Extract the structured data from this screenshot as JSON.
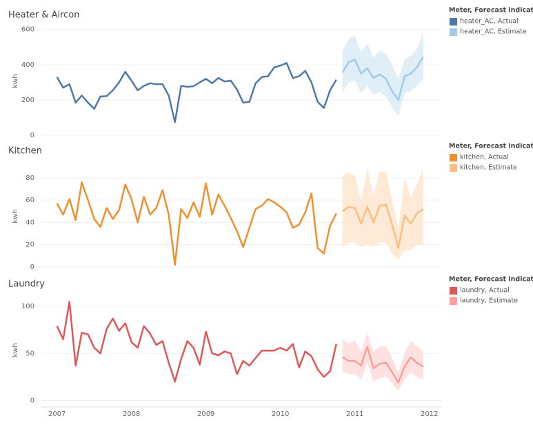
{
  "chart_data": [
    {
      "type": "line",
      "title": "Heater & Aircon",
      "y_label": "kwh",
      "legend_title": "Meter, Forecast indicator",
      "x": [
        2007,
        2007.083,
        2007.167,
        2007.25,
        2007.333,
        2007.417,
        2007.5,
        2007.583,
        2007.667,
        2007.75,
        2007.833,
        2007.917,
        2008,
        2008.083,
        2008.167,
        2008.25,
        2008.333,
        2008.417,
        2008.5,
        2008.583,
        2008.667,
        2008.75,
        2008.833,
        2008.917,
        2009,
        2009.083,
        2009.167,
        2009.25,
        2009.333,
        2009.417,
        2009.5,
        2009.583,
        2009.667,
        2009.75,
        2009.833,
        2009.917,
        2010,
        2010.083,
        2010.167,
        2010.25,
        2010.333,
        2010.417,
        2010.5,
        2010.583,
        2010.667,
        2010.75,
        2010.833,
        2010.917,
        2011,
        2011.083,
        2011.167,
        2011.25,
        2011.333,
        2011.417,
        2011.5,
        2011.583,
        2011.667,
        2011.75,
        2011.833,
        2011.917
      ],
      "xlim": [
        2006.79,
        2012.16
      ],
      "ylim": [
        -15,
        630
      ],
      "yticks": [
        0,
        200,
        400,
        600
      ],
      "grid": true,
      "series": [
        {
          "name": "heater_AC, Actual",
          "color": "#4e79a7",
          "values": [
            330,
            270,
            290,
            185,
            225,
            185,
            150,
            220,
            222,
            255,
            300,
            360,
            310,
            255,
            280,
            295,
            290,
            290,
            225,
            75,
            280,
            275,
            278,
            300,
            320,
            295,
            325,
            305,
            310,
            260,
            185,
            190,
            295,
            330,
            335,
            385,
            395,
            410,
            325,
            335,
            365,
            300,
            190,
            155,
            255,
            315,
            null,
            null,
            null,
            null,
            null,
            null,
            null,
            null,
            null,
            null,
            null,
            null,
            null,
            null
          ]
        },
        {
          "name": "heater_AC, Estimate",
          "color": "#a0cbe8",
          "band_color": "#d6e8f6",
          "values": [
            null,
            null,
            null,
            null,
            null,
            null,
            null,
            null,
            null,
            null,
            null,
            null,
            null,
            null,
            null,
            null,
            null,
            null,
            null,
            null,
            null,
            null,
            null,
            null,
            null,
            null,
            null,
            null,
            null,
            null,
            null,
            null,
            null,
            null,
            null,
            null,
            null,
            null,
            null,
            null,
            null,
            null,
            null,
            null,
            null,
            null,
            355,
            415,
            430,
            350,
            380,
            325,
            345,
            320,
            250,
            200,
            335,
            350,
            385,
            445
          ],
          "upper": [
            null,
            null,
            null,
            null,
            null,
            null,
            null,
            null,
            null,
            null,
            null,
            null,
            null,
            null,
            null,
            null,
            null,
            null,
            null,
            null,
            null,
            null,
            null,
            null,
            null,
            null,
            null,
            null,
            null,
            null,
            null,
            null,
            null,
            null,
            null,
            null,
            null,
            null,
            null,
            null,
            null,
            null,
            null,
            null,
            null,
            null,
            480,
            545,
            565,
            470,
            520,
            440,
            480,
            460,
            400,
            320,
            430,
            450,
            490,
            580
          ],
          "lower": [
            null,
            null,
            null,
            null,
            null,
            null,
            null,
            null,
            null,
            null,
            null,
            null,
            null,
            null,
            null,
            null,
            null,
            null,
            null,
            null,
            null,
            null,
            null,
            null,
            null,
            null,
            null,
            null,
            null,
            null,
            null,
            null,
            null,
            null,
            null,
            null,
            null,
            null,
            null,
            null,
            null,
            null,
            null,
            null,
            null,
            null,
            240,
            300,
            310,
            240,
            280,
            230,
            245,
            220,
            160,
            110,
            240,
            250,
            280,
            320
          ]
        }
      ]
    },
    {
      "type": "line",
      "title": "Kitchen",
      "y_label": "kwh",
      "legend_title": "Meter, Forecast indicator",
      "x": [
        2007,
        2007.083,
        2007.167,
        2007.25,
        2007.333,
        2007.417,
        2007.5,
        2007.583,
        2007.667,
        2007.75,
        2007.833,
        2007.917,
        2008,
        2008.083,
        2008.167,
        2008.25,
        2008.333,
        2008.417,
        2008.5,
        2008.583,
        2008.667,
        2008.75,
        2008.833,
        2008.917,
        2009,
        2009.083,
        2009.167,
        2009.25,
        2009.333,
        2009.417,
        2009.5,
        2009.583,
        2009.667,
        2009.75,
        2009.833,
        2009.917,
        2010,
        2010.083,
        2010.167,
        2010.25,
        2010.333,
        2010.417,
        2010.5,
        2010.583,
        2010.667,
        2010.75,
        2010.833,
        2010.917,
        2011,
        2011.083,
        2011.167,
        2011.25,
        2011.333,
        2011.417,
        2011.5,
        2011.583,
        2011.667,
        2011.75,
        2011.833,
        2011.917
      ],
      "xlim": [
        2006.79,
        2012.16
      ],
      "ylim": [
        -5,
        96
      ],
      "yticks": [
        0,
        20,
        40,
        60,
        80
      ],
      "grid": true,
      "series": [
        {
          "name": "kitchen, Actual",
          "color": "#f28e2b",
          "values": [
            57,
            47,
            61,
            42,
            76,
            60,
            43,
            36,
            53,
            43,
            51,
            74,
            61,
            40,
            63,
            47,
            53,
            69,
            47,
            2,
            52,
            44,
            58,
            45,
            75,
            47,
            65,
            55,
            44,
            32,
            18,
            35,
            52,
            55,
            61,
            58,
            54,
            49,
            35,
            38,
            49,
            66,
            17,
            12,
            37,
            48,
            null,
            null,
            null,
            null,
            null,
            null,
            null,
            null,
            null,
            null,
            null,
            null,
            null,
            null
          ]
        },
        {
          "name": "kitchen, Estimate",
          "color": "#ffbe7d",
          "band_color": "#fde3c8",
          "values": [
            null,
            null,
            null,
            null,
            null,
            null,
            null,
            null,
            null,
            null,
            null,
            null,
            null,
            null,
            null,
            null,
            null,
            null,
            null,
            null,
            null,
            null,
            null,
            null,
            null,
            null,
            null,
            null,
            null,
            null,
            null,
            null,
            null,
            null,
            null,
            null,
            null,
            null,
            null,
            null,
            null,
            null,
            null,
            null,
            null,
            null,
            50,
            54,
            53,
            39,
            54,
            40,
            55,
            56,
            38,
            17,
            46,
            39,
            48,
            52
          ],
          "upper": [
            null,
            null,
            null,
            null,
            null,
            null,
            null,
            null,
            null,
            null,
            null,
            null,
            null,
            null,
            null,
            null,
            null,
            null,
            null,
            null,
            null,
            null,
            null,
            null,
            null,
            null,
            null,
            null,
            null,
            null,
            null,
            null,
            null,
            null,
            null,
            null,
            null,
            null,
            null,
            null,
            null,
            null,
            null,
            null,
            null,
            null,
            82,
            85,
            82,
            60,
            88,
            65,
            86,
            85,
            60,
            35,
            80,
            62,
            75,
            88
          ],
          "lower": [
            null,
            null,
            null,
            null,
            null,
            null,
            null,
            null,
            null,
            null,
            null,
            null,
            null,
            null,
            null,
            null,
            null,
            null,
            null,
            null,
            null,
            null,
            null,
            null,
            null,
            null,
            null,
            null,
            null,
            null,
            null,
            null,
            null,
            null,
            null,
            null,
            null,
            null,
            null,
            null,
            null,
            null,
            null,
            null,
            null,
            null,
            18,
            22,
            22,
            18,
            20,
            18,
            22,
            22,
            12,
            6,
            15,
            15,
            20,
            20
          ]
        }
      ]
    },
    {
      "type": "line",
      "title": "Laundry",
      "y_label": "kwh",
      "legend_title": "Meter, Forecast indicator",
      "x": [
        2007,
        2007.083,
        2007.167,
        2007.25,
        2007.333,
        2007.417,
        2007.5,
        2007.583,
        2007.667,
        2007.75,
        2007.833,
        2007.917,
        2008,
        2008.083,
        2008.167,
        2008.25,
        2008.333,
        2008.417,
        2008.5,
        2008.583,
        2008.667,
        2008.75,
        2008.833,
        2008.917,
        2009,
        2009.083,
        2009.167,
        2009.25,
        2009.333,
        2009.417,
        2009.5,
        2009.583,
        2009.667,
        2009.75,
        2009.833,
        2009.917,
        2010,
        2010.083,
        2010.167,
        2010.25,
        2010.333,
        2010.417,
        2010.5,
        2010.583,
        2010.667,
        2010.75,
        2010.833,
        2010.917,
        2011,
        2011.083,
        2011.167,
        2011.25,
        2011.333,
        2011.417,
        2011.5,
        2011.583,
        2011.667,
        2011.75,
        2011.833,
        2011.917
      ],
      "xlim": [
        2006.79,
        2012.16
      ],
      "xticks": [
        2007,
        2008,
        2009,
        2010,
        2011,
        2012
      ],
      "ylim": [
        -7,
        114
      ],
      "yticks": [
        0,
        50,
        100
      ],
      "grid": true,
      "series": [
        {
          "name": "laundry, Actual",
          "color": "#e15759",
          "values": [
            79,
            65,
            105,
            37,
            72,
            70,
            56,
            50,
            76,
            87,
            74,
            82,
            62,
            56,
            79,
            71,
            59,
            63,
            40,
            20,
            44,
            63,
            56,
            38,
            73,
            50,
            48,
            52,
            50,
            28,
            42,
            37,
            45,
            53,
            53,
            53,
            56,
            53,
            60,
            35,
            52,
            47,
            33,
            25,
            31,
            60,
            null,
            null,
            null,
            null,
            null,
            null,
            null,
            null,
            null,
            null,
            null,
            null,
            null,
            null
          ]
        },
        {
          "name": "laundry, Estimate",
          "color": "#ff9d9a",
          "band_color": "#fdd8d8",
          "values": [
            null,
            null,
            null,
            null,
            null,
            null,
            null,
            null,
            null,
            null,
            null,
            null,
            null,
            null,
            null,
            null,
            null,
            null,
            null,
            null,
            null,
            null,
            null,
            null,
            null,
            null,
            null,
            null,
            null,
            null,
            null,
            null,
            null,
            null,
            null,
            null,
            null,
            null,
            null,
            null,
            null,
            null,
            null,
            null,
            null,
            null,
            46,
            42,
            42,
            37,
            57,
            34,
            39,
            40,
            30,
            19,
            36,
            46,
            40,
            36
          ],
          "upper": [
            null,
            null,
            null,
            null,
            null,
            null,
            null,
            null,
            null,
            null,
            null,
            null,
            null,
            null,
            null,
            null,
            null,
            null,
            null,
            null,
            null,
            null,
            null,
            null,
            null,
            null,
            null,
            null,
            null,
            null,
            null,
            null,
            null,
            null,
            null,
            null,
            null,
            null,
            null,
            null,
            null,
            null,
            null,
            null,
            null,
            null,
            65,
            60,
            64,
            52,
            72,
            52,
            57,
            58,
            45,
            30,
            50,
            63,
            58,
            52
          ],
          "lower": [
            null,
            null,
            null,
            null,
            null,
            null,
            null,
            null,
            null,
            null,
            null,
            null,
            null,
            null,
            null,
            null,
            null,
            null,
            null,
            null,
            null,
            null,
            null,
            null,
            null,
            null,
            null,
            null,
            null,
            null,
            null,
            null,
            null,
            null,
            null,
            null,
            null,
            null,
            null,
            null,
            null,
            null,
            null,
            null,
            null,
            null,
            30,
            28,
            28,
            22,
            40,
            20,
            24,
            25,
            18,
            10,
            22,
            30,
            25,
            22
          ]
        }
      ]
    }
  ]
}
